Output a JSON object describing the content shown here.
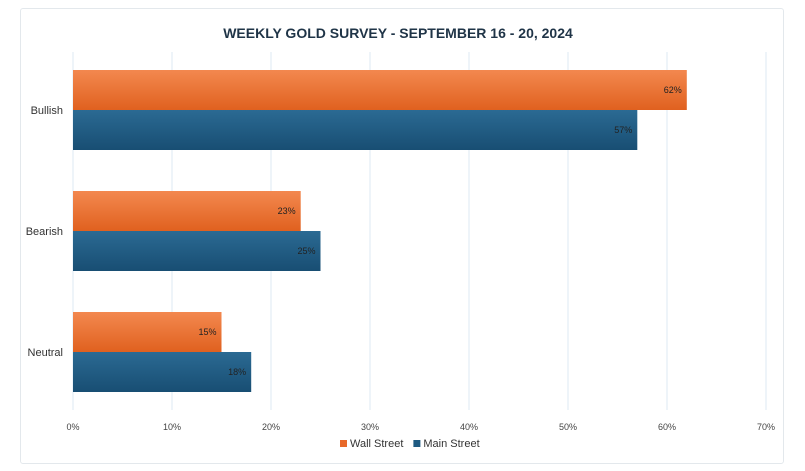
{
  "chart_data": {
    "type": "bar",
    "orientation": "horizontal",
    "title": "WEEKLY GOLD SURVEY - SEPTEMBER 16 - 20, 2024",
    "categories": [
      "Bullish",
      "Bearish",
      "Neutral"
    ],
    "series": [
      {
        "name": "Wall Street",
        "values": [
          62,
          23,
          15
        ],
        "labels": [
          "62%",
          "23%",
          "15%"
        ],
        "color": "#e8692a"
      },
      {
        "name": "Main Street",
        "values": [
          57,
          25,
          18
        ],
        "labels": [
          "57%",
          "25%",
          "18%"
        ],
        "color": "#1e5b82"
      }
    ],
    "xlim": [
      0,
      70
    ],
    "xticks": [
      0,
      10,
      20,
      30,
      40,
      50,
      60,
      70
    ],
    "xtick_labels": [
      "0%",
      "10%",
      "20%",
      "30%",
      "40%",
      "50%",
      "60%",
      "70%"
    ],
    "grid": true,
    "legend_position": "bottom"
  }
}
